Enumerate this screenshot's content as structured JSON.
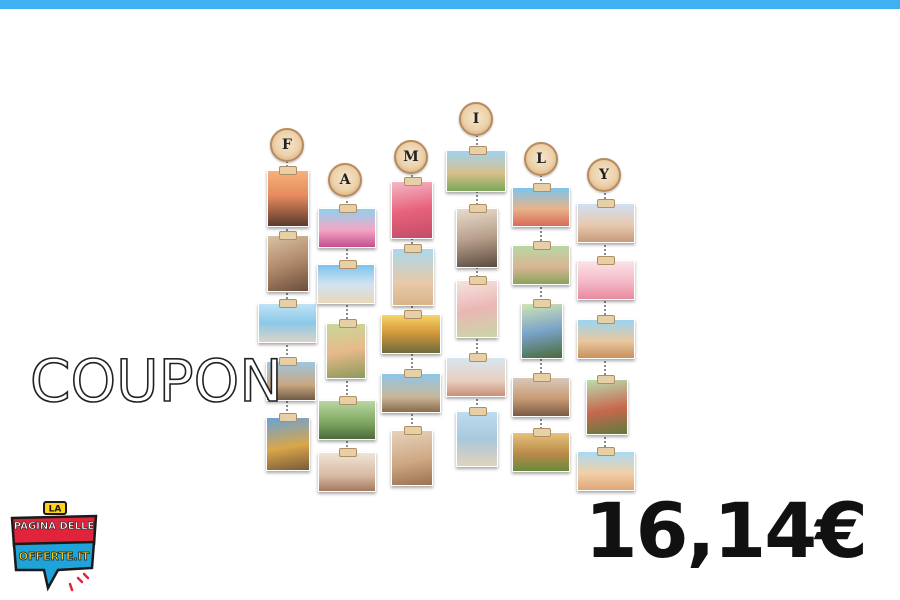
{
  "banner": {
    "coupon_text": "COUPON",
    "price_text": "16,14€"
  },
  "logo": {
    "line1": "LA",
    "line2": "PAGINA DELLE",
    "line3": "OFFERTE.IT"
  },
  "product": {
    "letters": [
      "F",
      "A",
      "M",
      "I",
      "L",
      "Y"
    ]
  },
  "colors": {
    "top_bar": "#3fb0f0",
    "logo_red": "#e2233c",
    "logo_blue": "#1fa3d9",
    "logo_yellow": "#ffd21f"
  }
}
